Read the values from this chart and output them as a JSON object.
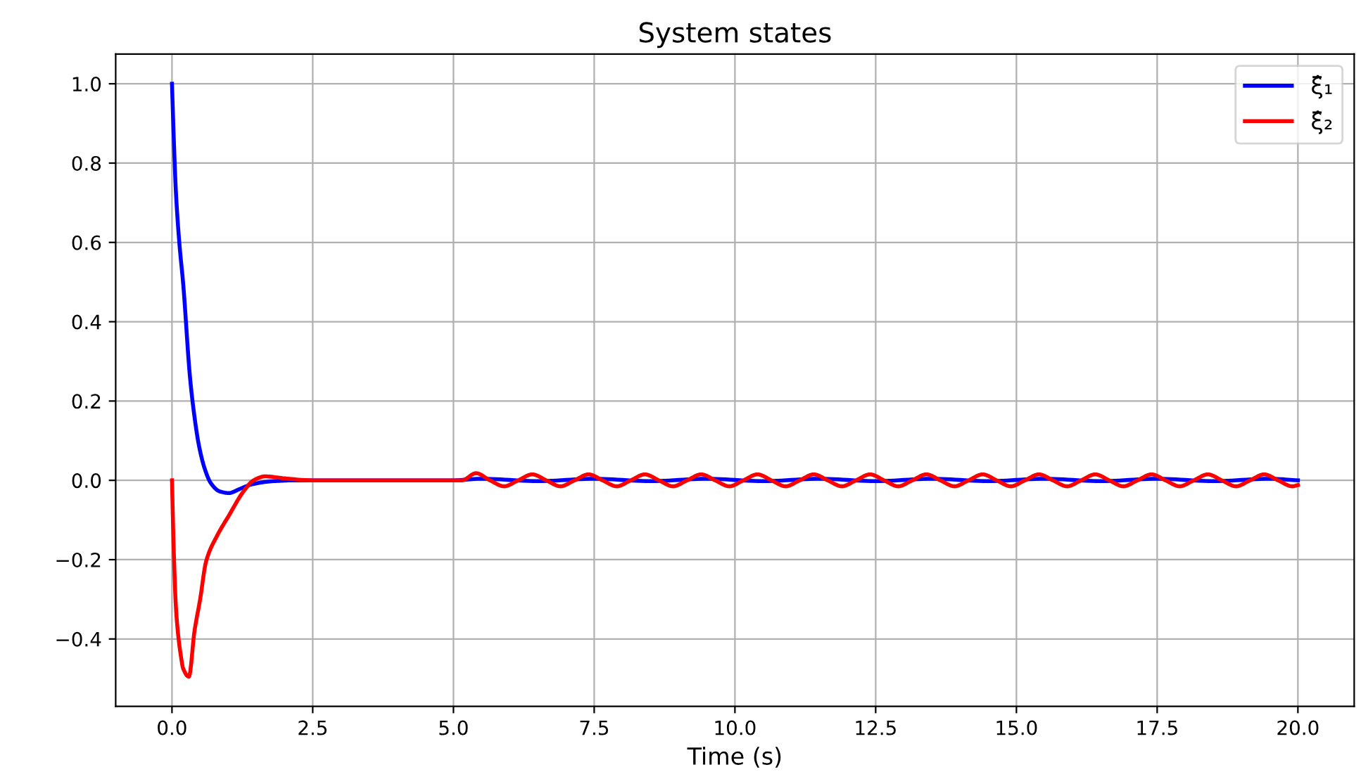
{
  "chart_data": {
    "type": "line",
    "title": "System states",
    "xlabel": "Time (s)",
    "xlim": [
      -1,
      21
    ],
    "ylim": [
      -0.57,
      1.075
    ],
    "xticks": [
      {
        "value": 0,
        "label": "0.0"
      },
      {
        "value": 2.5,
        "label": "2.5"
      },
      {
        "value": 5,
        "label": "5.0"
      },
      {
        "value": 7.5,
        "label": "7.5"
      },
      {
        "value": 10,
        "label": "10.0"
      },
      {
        "value": 12.5,
        "label": "12.5"
      },
      {
        "value": 15,
        "label": "15.0"
      },
      {
        "value": 17.5,
        "label": "17.5"
      },
      {
        "value": 20,
        "label": "20.0"
      }
    ],
    "yticks": [
      {
        "value": -0.4,
        "label": "−0.4"
      },
      {
        "value": -0.2,
        "label": "−0.2"
      },
      {
        "value": 0,
        "label": "0.0"
      },
      {
        "value": 0.2,
        "label": "0.2"
      },
      {
        "value": 0.4,
        "label": "0.4"
      },
      {
        "value": 0.6,
        "label": "0.6"
      },
      {
        "value": 0.8,
        "label": "0.8"
      },
      {
        "value": 1,
        "label": "1.0"
      }
    ],
    "grid": true,
    "legend": "top right",
    "series": [
      {
        "name": "ξ̂₁",
        "color": "#0000ff",
        "x": [
          0,
          0.03,
          0.07,
          0.13,
          0.2,
          0.32,
          0.4,
          0.48,
          0.58,
          0.69,
          0.85,
          1.01,
          1.2,
          1.42,
          1.8,
          2.2,
          5,
          5.5,
          6.5,
          7.5,
          8.5,
          9.5,
          10.5,
          11.5,
          12.5,
          13.5,
          14.5,
          15.5,
          16.5,
          17.5,
          18.5,
          19.5,
          20
        ],
        "values": [
          1.0,
          0.87,
          0.727,
          0.6,
          0.494,
          0.26,
          0.16,
          0.087,
          0.03,
          -0.007,
          -0.028,
          -0.032,
          -0.022,
          -0.01,
          -0.002,
          0.0,
          0.0,
          0.004,
          -0.002,
          0.004,
          -0.002,
          0.004,
          -0.002,
          0.004,
          -0.002,
          0.004,
          -0.002,
          0.004,
          -0.002,
          0.004,
          -0.002,
          0.004,
          0.0
        ]
      },
      {
        "name": "ξ̂₂",
        "color": "#ff0000",
        "x": [
          0,
          0.03,
          0.07,
          0.11,
          0.155,
          0.2,
          0.3,
          0.4,
          0.5,
          0.605,
          0.8,
          1.01,
          1.26,
          1.45,
          1.65,
          2.0,
          2.5,
          5,
          5.15,
          5.4,
          5.65,
          5.9,
          6.15,
          6.4,
          6.65,
          6.9,
          7.15,
          7.4,
          7.65,
          7.9,
          8.15,
          8.4,
          8.65,
          8.9,
          9.15,
          9.4,
          9.65,
          9.9,
          10.15,
          10.4,
          10.65,
          10.9,
          11.15,
          11.4,
          11.65,
          11.9,
          12.15,
          12.4,
          12.65,
          12.9,
          13.15,
          13.4,
          13.65,
          13.9,
          14.15,
          14.4,
          14.65,
          14.9,
          15.15,
          15.4,
          15.65,
          15.9,
          16.15,
          16.4,
          16.65,
          16.9,
          17.15,
          17.4,
          17.65,
          17.9,
          18.15,
          18.4,
          18.65,
          18.9,
          19.15,
          19.4,
          19.65,
          19.9,
          20
        ],
        "values": [
          0.0,
          -0.17,
          -0.32,
          -0.39,
          -0.44,
          -0.475,
          -0.495,
          -0.38,
          -0.3,
          -0.205,
          -0.14,
          -0.089,
          -0.03,
          0.0,
          0.01,
          0.005,
          0.0,
          0.0,
          0.0,
          0.018,
          0.0,
          -0.015,
          0.0,
          0.015,
          0.0,
          -0.015,
          0.0,
          0.015,
          0.0,
          -0.015,
          0.0,
          0.015,
          0.0,
          -0.015,
          0.0,
          0.015,
          0.0,
          -0.015,
          0.0,
          0.015,
          0.0,
          -0.015,
          0.0,
          0.015,
          0.0,
          -0.015,
          0.0,
          0.015,
          0.0,
          -0.015,
          0.0,
          0.015,
          0.0,
          -0.015,
          0.0,
          0.015,
          0.0,
          -0.015,
          0.0,
          0.015,
          0.0,
          -0.015,
          0.0,
          0.015,
          0.0,
          -0.015,
          0.0,
          0.015,
          0.0,
          -0.015,
          0.0,
          0.015,
          0.0,
          -0.015,
          0.0,
          0.015,
          0.0,
          -0.015,
          -0.012
        ]
      }
    ]
  }
}
